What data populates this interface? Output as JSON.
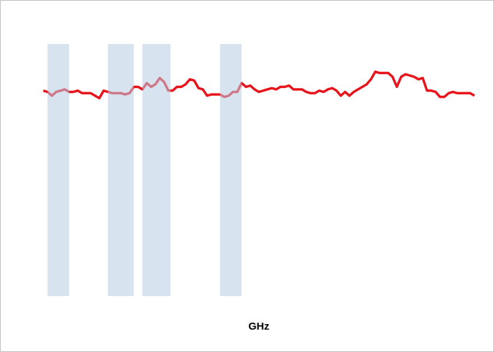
{
  "chart_data": {
    "type": "line",
    "x": [
      1.7,
      1.71,
      1.72,
      1.73,
      1.74,
      1.75,
      1.76,
      1.77,
      1.78,
      1.79,
      1.8,
      1.81,
      1.82,
      1.83,
      1.84,
      1.85,
      1.86,
      1.87,
      1.88,
      1.89,
      1.9,
      1.91,
      1.92,
      1.93,
      1.94,
      1.95,
      1.96,
      1.97,
      1.98,
      1.99,
      2,
      2.01,
      2.02,
      2.03,
      2.04,
      2.05,
      2.06,
      2.07,
      2.08,
      2.09,
      2.1,
      2.11,
      2.12,
      2.13,
      2.14,
      2.15,
      2.16,
      2.17,
      2.18,
      2.19,
      2.2,
      2.21,
      2.22,
      2.23,
      2.24,
      2.25,
      2.26,
      2.27,
      2.28,
      2.29,
      2.3,
      2.31,
      2.32,
      2.33,
      2.34,
      2.35,
      2.36,
      2.37,
      2.38,
      2.39,
      2.4,
      2.41,
      2.42,
      2.43,
      2.44,
      2.45,
      2.46,
      2.47,
      2.48,
      2.49,
      2.5,
      2.51,
      2.52,
      2.53,
      2.54,
      2.55,
      2.56,
      2.57,
      2.58,
      2.59,
      2.6,
      2.61,
      2.62,
      2.63,
      2.64,
      2.65,
      2.66,
      2.67,
      2.68,
      2.69,
      2.7
    ],
    "series": [
      {
        "color": "#e8141b",
        "values": [
          81.5,
          81,
          79.5,
          81,
          81.5,
          82,
          81,
          81,
          81.5,
          80.5,
          80.5,
          80.5,
          79.5,
          78.5,
          81.5,
          81,
          80.5,
          80.5,
          80.5,
          80,
          80.5,
          83,
          83,
          82,
          84.5,
          83,
          84,
          86.5,
          85,
          81.5,
          81.5,
          83,
          83,
          84,
          86,
          85.5,
          82.5,
          82,
          79.5,
          80,
          80,
          80,
          79,
          79.5,
          81,
          81,
          84.5,
          83,
          83.5,
          82,
          81,
          81.5,
          82,
          82.5,
          82,
          83,
          83,
          83.5,
          82,
          82,
          82,
          81,
          80.5,
          80.5,
          81.5,
          81,
          82,
          82.5,
          81.5,
          79.5,
          81,
          79.5,
          81,
          82,
          83,
          84,
          86,
          89,
          88.5,
          88.5,
          88.5,
          87,
          83,
          87,
          88,
          87.5,
          87,
          86,
          86.5,
          81.5,
          81.5,
          81,
          79,
          79,
          80.5,
          81,
          80.5,
          80.5,
          80.5,
          80.5,
          79.5
        ]
      }
    ],
    "bands": [
      [
        1.71,
        1.76
      ],
      [
        1.85,
        1.91
      ],
      [
        1.93,
        1.995
      ],
      [
        2.11,
        2.16
      ]
    ],
    "band_color": "#b8cce4",
    "xlabel": "GHz",
    "xlim": [
      1.7,
      2.7
    ],
    "xticks": [
      1.7,
      1.8,
      1.9,
      2,
      2.1,
      2.2,
      2.3,
      2.4,
      2.5,
      2.6,
      2.7
    ],
    "ylim": [
      0,
      100
    ],
    "yticks": [
      0,
      10,
      20,
      30,
      40,
      50,
      60,
      70,
      80,
      90,
      100
    ],
    "grid": true,
    "minor_grid": {
      "x": 10,
      "y": 5
    }
  }
}
